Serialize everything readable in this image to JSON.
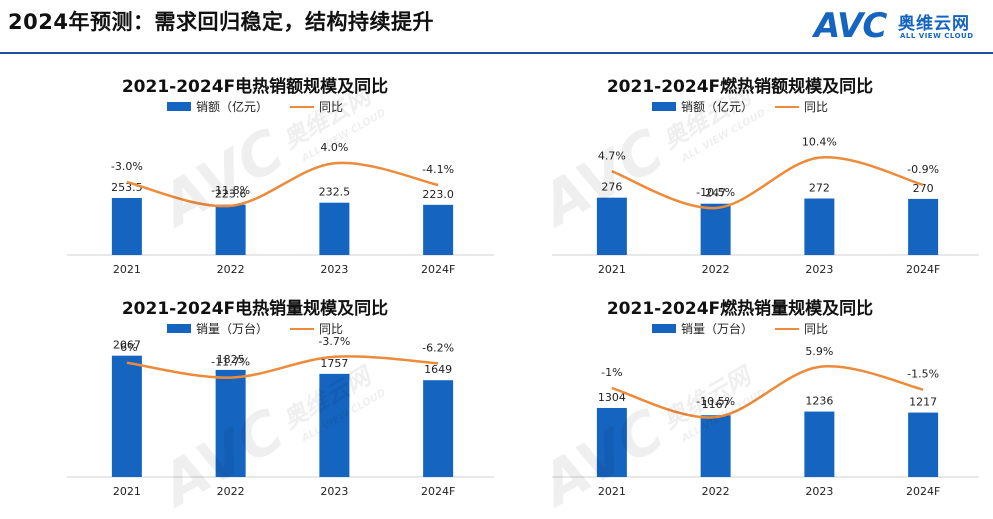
{
  "header": {
    "title": "2024年预测：需求回归稳定，结构持续提升"
  },
  "logo": {
    "avc": "AVC",
    "cn": "奥维云网",
    "en": "ALL VIEW CLOUD"
  },
  "colors": {
    "bar": "#1565c0",
    "line": "#ed8b3a",
    "accent": "#1f4fa3"
  },
  "watermark": {
    "mark": "AVC",
    "cn": "奥维云网",
    "en": "ALL VIEW CLOUD"
  },
  "chart_data": [
    {
      "type": "bar",
      "title": "2021-2024F电热销额规模及同比",
      "categories": [
        "2021",
        "2022",
        "2023",
        "2024F"
      ],
      "series": [
        {
          "name": "销额（亿元）",
          "values": [
            253.5,
            223.6,
            232.5,
            223.0
          ],
          "labels": [
            "253.5",
            "223.6",
            "232.5",
            "223.0"
          ]
        },
        {
          "name": "同比",
          "type": "line",
          "values": [
            -3.0,
            -11.8,
            4.0,
            -4.1
          ],
          "labels": [
            "-3.0%",
            "-11.8%",
            "4.0%",
            "-4.1%"
          ]
        }
      ],
      "bar_ylim": [
        0,
        600
      ],
      "line_ylim": [
        -30,
        20
      ]
    },
    {
      "type": "bar",
      "title": "2021-2024F燃热销额规模及同比",
      "categories": [
        "2021",
        "2022",
        "2023",
        "2024F"
      ],
      "series": [
        {
          "name": "销额（亿元）",
          "values": [
            276,
            247,
            272,
            270
          ],
          "labels": [
            "276",
            "247",
            "272",
            "270"
          ]
        },
        {
          "name": "同比",
          "type": "line",
          "values": [
            4.7,
            -10.5,
            10.4,
            -0.9
          ],
          "labels": [
            "4.7%",
            "-10.5%",
            "10.4%",
            "-0.9%"
          ]
        }
      ],
      "bar_ylim": [
        0,
        650
      ],
      "line_ylim": [
        -30,
        26
      ]
    },
    {
      "type": "bar",
      "title": "2021-2024F电热销量规模及同比",
      "categories": [
        "2021",
        "2022",
        "2023",
        "2024F"
      ],
      "series": [
        {
          "name": "销量（万台）",
          "values": [
            2067,
            1825,
            1757,
            1649
          ],
          "labels": [
            "2067",
            "1825",
            "1757",
            "1649"
          ]
        },
        {
          "name": "同比",
          "type": "line",
          "values": [
            -6,
            -11.7,
            -3.7,
            -6.2
          ],
          "labels": [
            "-6%",
            "-11.7%",
            "-3.7%",
            "-6.2%"
          ]
        }
      ],
      "bar_ylim": [
        0,
        2300
      ],
      "line_ylim": [
        -50,
        2
      ]
    },
    {
      "type": "bar",
      "title": "2021-2024F燃热销量规模及同比",
      "categories": [
        "2021",
        "2022",
        "2023",
        "2024F"
      ],
      "series": [
        {
          "name": "销量（万台）",
          "values": [
            1304,
            1167,
            1236,
            1217
          ],
          "labels": [
            "1304",
            "1167",
            "1236",
            "1217"
          ]
        },
        {
          "name": "同比",
          "type": "line",
          "values": [
            -1,
            -10.5,
            5.9,
            -1.5
          ],
          "labels": [
            "-1%",
            "-10.5%",
            "5.9%",
            "-1.5%"
          ]
        }
      ],
      "bar_ylim": [
        0,
        2550
      ],
      "line_ylim": [
        -30,
        14
      ]
    }
  ]
}
